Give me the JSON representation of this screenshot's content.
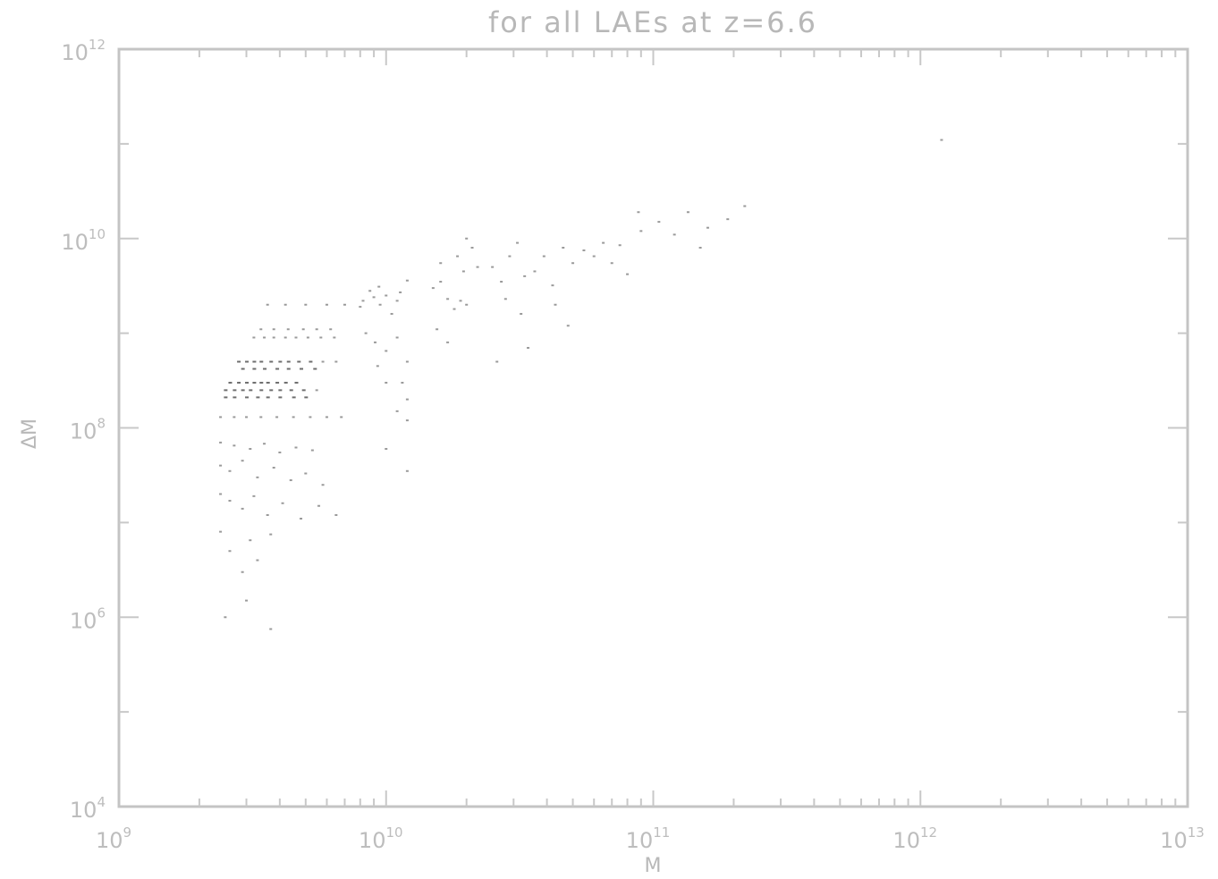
{
  "chart_data": {
    "type": "scatter",
    "title": "for all  LAEs at z=6.6",
    "xlabel": "M",
    "ylabel": "ΔM",
    "xscale": "log",
    "yscale": "log",
    "xlim": [
      1000000000.0,
      10000000000000.0
    ],
    "ylim": [
      10000.0,
      1000000000000.0
    ],
    "x_ticks": [
      {
        "base": "10",
        "exp": "9",
        "value": 1000000000.0
      },
      {
        "base": "10",
        "exp": "10",
        "value": 10000000000.0
      },
      {
        "base": "10",
        "exp": "11",
        "value": 100000000000.0
      },
      {
        "base": "10",
        "exp": "12",
        "value": 1000000000000.0
      },
      {
        "base": "10",
        "exp": "13",
        "value": 10000000000000.0
      }
    ],
    "y_ticks": [
      {
        "base": "10",
        "exp": "4",
        "value": 10000.0
      },
      {
        "base": "10",
        "exp": "6",
        "value": 1000000.0
      },
      {
        "base": "10",
        "exp": "8",
        "value": 100000000.0
      },
      {
        "base": "10",
        "exp": "10",
        "value": 10000000000.0
      },
      {
        "base": "10",
        "exp": "12",
        "value": 1000000000000.0
      }
    ],
    "grid": false,
    "legend": "none",
    "point_color": "#9a9a9a",
    "dense_point_color": "#6e6e6e",
    "series": [
      {
        "points": [
          [
            2600000000.0,
            300000000.0
          ],
          [
            2800000000.0,
            300000000.0
          ],
          [
            3000000000.0,
            300000000.0
          ],
          [
            3200000000.0,
            300000000.0
          ],
          [
            3400000000.0,
            300000000.0
          ],
          [
            3600000000.0,
            300000000.0
          ],
          [
            3900000000.0,
            300000000.0
          ],
          [
            4200000000.0,
            300000000.0
          ],
          [
            4600000000.0,
            300000000.0
          ],
          [
            2500000000.0,
            250000000.0
          ],
          [
            2700000000.0,
            250000000.0
          ],
          [
            2900000000.0,
            250000000.0
          ],
          [
            3100000000.0,
            250000000.0
          ],
          [
            3400000000.0,
            250000000.0
          ],
          [
            3700000000.0,
            250000000.0
          ],
          [
            4000000000.0,
            250000000.0
          ],
          [
            4400000000.0,
            250000000.0
          ],
          [
            4900000000.0,
            250000000.0
          ],
          [
            5500000000.0,
            250000000.0
          ],
          [
            2500000000.0,
            210000000.0
          ],
          [
            2700000000.0,
            210000000.0
          ],
          [
            3000000000.0,
            210000000.0
          ],
          [
            3300000000.0,
            210000000.0
          ],
          [
            3600000000.0,
            210000000.0
          ],
          [
            4000000000.0,
            210000000.0
          ],
          [
            4500000000.0,
            210000000.0
          ],
          [
            5000000000.0,
            210000000.0
          ],
          [
            2800000000.0,
            500000000.0
          ],
          [
            3000000000.0,
            500000000.0
          ],
          [
            3200000000.0,
            500000000.0
          ],
          [
            3400000000.0,
            500000000.0
          ],
          [
            3700000000.0,
            500000000.0
          ],
          [
            4000000000.0,
            500000000.0
          ],
          [
            4300000000.0,
            500000000.0
          ],
          [
            4700000000.0,
            500000000.0
          ],
          [
            5200000000.0,
            500000000.0
          ],
          [
            5800000000.0,
            500000000.0
          ],
          [
            6500000000.0,
            500000000.0
          ],
          [
            2900000000.0,
            420000000.0
          ],
          [
            3200000000.0,
            420000000.0
          ],
          [
            3500000000.0,
            420000000.0
          ],
          [
            3900000000.0,
            420000000.0
          ],
          [
            4300000000.0,
            420000000.0
          ],
          [
            4800000000.0,
            420000000.0
          ],
          [
            5400000000.0,
            420000000.0
          ],
          [
            3200000000.0,
            900000000.0
          ],
          [
            3500000000.0,
            900000000.0
          ],
          [
            3800000000.0,
            900000000.0
          ],
          [
            4200000000.0,
            900000000.0
          ],
          [
            4600000000.0,
            900000000.0
          ],
          [
            5100000000.0,
            900000000.0
          ],
          [
            5700000000.0,
            900000000.0
          ],
          [
            6400000000.0,
            900000000.0
          ],
          [
            3400000000.0,
            1100000000.0
          ],
          [
            3800000000.0,
            1100000000.0
          ],
          [
            4300000000.0,
            1100000000.0
          ],
          [
            4900000000.0,
            1100000000.0
          ],
          [
            5500000000.0,
            1100000000.0
          ],
          [
            6200000000.0,
            1100000000.0
          ],
          [
            2400000000.0,
            130000000.0
          ],
          [
            2700000000.0,
            130000000.0
          ],
          [
            3000000000.0,
            130000000.0
          ],
          [
            3400000000.0,
            130000000.0
          ],
          [
            3900000000.0,
            130000000.0
          ],
          [
            4500000000.0,
            130000000.0
          ],
          [
            5200000000.0,
            130000000.0
          ],
          [
            6000000000.0,
            130000000.0
          ],
          [
            6800000000.0,
            130000000.0
          ],
          [
            2400000000.0,
            70000000.0
          ],
          [
            2700000000.0,
            65000000.0
          ],
          [
            3100000000.0,
            60000000.0
          ],
          [
            3500000000.0,
            68000000.0
          ],
          [
            4000000000.0,
            55000000.0
          ],
          [
            4600000000.0,
            62000000.0
          ],
          [
            5300000000.0,
            58000000.0
          ],
          [
            2400000000.0,
            40000000.0
          ],
          [
            2600000000.0,
            35000000.0
          ],
          [
            2900000000.0,
            45000000.0
          ],
          [
            3300000000.0,
            30000000.0
          ],
          [
            3800000000.0,
            38000000.0
          ],
          [
            4400000000.0,
            28000000.0
          ],
          [
            5000000000.0,
            33000000.0
          ],
          [
            5800000000.0,
            25000000.0
          ],
          [
            2400000000.0,
            20000000.0
          ],
          [
            2600000000.0,
            17000000.0
          ],
          [
            2900000000.0,
            14000000.0
          ],
          [
            3200000000.0,
            19000000.0
          ],
          [
            3600000000.0,
            12000000.0
          ],
          [
            4100000000.0,
            16000000.0
          ],
          [
            4800000000.0,
            11000000.0
          ],
          [
            5600000000.0,
            15000000.0
          ],
          [
            6500000000.0,
            12000000.0
          ],
          [
            2400000000.0,
            8000000.0
          ],
          [
            2600000000.0,
            5000000.0
          ],
          [
            2900000000.0,
            3000000.0
          ],
          [
            3100000000.0,
            6500000.0
          ],
          [
            3300000000.0,
            4000000.0
          ],
          [
            3700000000.0,
            7500000.0
          ],
          [
            2500000000.0,
            1000000.0
          ],
          [
            3700000000.0,
            750000.0
          ],
          [
            3000000000.0,
            1500000.0
          ],
          [
            3600000000.0,
            2000000000.0
          ],
          [
            4200000000.0,
            2000000000.0
          ],
          [
            5000000000.0,
            2000000000.0
          ],
          [
            6000000000.0,
            2000000000.0
          ],
          [
            7000000000.0,
            2000000000.0
          ],
          [
            8200000000.0,
            2200000000.0
          ],
          [
            9000000000.0,
            2400000000.0
          ],
          [
            9500000000.0,
            2000000000.0
          ],
          [
            8000000000.0,
            1900000000.0
          ],
          [
            8700000000.0,
            2800000000.0
          ],
          [
            9400000000.0,
            3100000000.0
          ],
          [
            10000000000.0,
            2500000000.0
          ],
          [
            11000000000.0,
            2200000000.0
          ],
          [
            12000000000.0,
            3600000000.0
          ],
          [
            11300000000.0,
            2700000000.0
          ],
          [
            10500000000.0,
            1600000000.0
          ],
          [
            8400000000.0,
            1000000000.0
          ],
          [
            9100000000.0,
            800000000.0
          ],
          [
            10000000000.0,
            650000000.0
          ],
          [
            11000000000.0,
            900000000.0
          ],
          [
            12000000000.0,
            500000000.0
          ],
          [
            11500000000.0,
            300000000.0
          ],
          [
            10000000000.0,
            300000000.0
          ],
          [
            9300000000.0,
            450000000.0
          ],
          [
            12000000000.0,
            200000000.0
          ],
          [
            12000000000.0,
            120000000.0
          ],
          [
            11000000000.0,
            150000000.0
          ],
          [
            12000000000.0,
            35000000.0
          ],
          [
            10000000000.0,
            60000000.0
          ],
          [
            15000000000.0,
            3000000000.0
          ],
          [
            16000000000.0,
            3500000000.0
          ],
          [
            17000000000.0,
            2300000000.0
          ],
          [
            18000000000.0,
            1800000000.0
          ],
          [
            19000000000.0,
            2200000000.0
          ],
          [
            20000000000.0,
            2000000000.0
          ],
          [
            15500000000.0,
            1100000000.0
          ],
          [
            17000000000.0,
            800000000.0
          ],
          [
            16000000000.0,
            5500000000.0
          ],
          [
            18500000000.0,
            6500000000.0
          ],
          [
            19500000000.0,
            4500000000.0
          ],
          [
            21000000000.0,
            8000000000.0
          ],
          [
            22000000000.0,
            5000000000.0
          ],
          [
            20000000000.0,
            10000000000.0
          ],
          [
            25000000000.0,
            5000000000.0
          ],
          [
            27000000000.0,
            3500000000.0
          ],
          [
            29000000000.0,
            6500000000.0
          ],
          [
            31000000000.0,
            9000000000.0
          ],
          [
            33000000000.0,
            4000000000.0
          ],
          [
            28000000000.0,
            2300000000.0
          ],
          [
            32000000000.0,
            1600000000.0
          ],
          [
            34000000000.0,
            700000000.0
          ],
          [
            26000000000.0,
            500000000.0
          ],
          [
            36000000000.0,
            4500000000.0
          ],
          [
            39000000000.0,
            6500000000.0
          ],
          [
            42000000000.0,
            3200000000.0
          ],
          [
            46000000000.0,
            8000000000.0
          ],
          [
            43000000000.0,
            2000000000.0
          ],
          [
            50000000000.0,
            5500000000.0
          ],
          [
            55000000000.0,
            7500000000.0
          ],
          [
            48000000000.0,
            1200000000.0
          ],
          [
            60000000000.0,
            6500000000.0
          ],
          [
            65000000000.0,
            9000000000.0
          ],
          [
            70000000000.0,
            5500000000.0
          ],
          [
            75000000000.0,
            8500000000.0
          ],
          [
            80000000000.0,
            4200000000.0
          ],
          [
            90000000000.0,
            12000000000.0
          ],
          [
            88000000000.0,
            19000000000.0
          ],
          [
            105000000000.0,
            15000000000.0
          ],
          [
            120000000000.0,
            11000000000.0
          ],
          [
            135000000000.0,
            19000000000.0
          ],
          [
            160000000000.0,
            13000000000.0
          ],
          [
            190000000000.0,
            16000000000.0
          ],
          [
            220000000000.0,
            22000000000.0
          ],
          [
            150000000000.0,
            8000000000.0
          ],
          [
            1200000000000.0,
            110000000000.0
          ]
        ]
      }
    ]
  }
}
